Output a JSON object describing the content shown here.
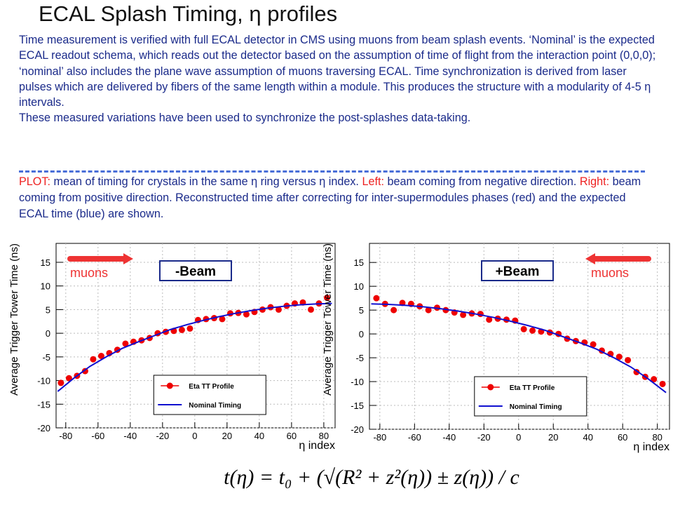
{
  "title": "ECAL Splash Timing, η profiles",
  "description": [
    "Time measurement is verified with full ECAL detector in CMS using muons from beam splash events. ‘Nominal’ is the expected ECAL readout schema, which reads out the detector based on the assumption of time of flight from the interaction point (0,0,0); ‘nominal’ also includes the plane wave assumption of muons traversing ECAL. Time synchronization is derived from laser pulses which are delivered by fibers of the same length within a module. This produces the structure with a modularity of 4-5 η intervals.",
    "These measured variations have been used to synchronize the post-splashes data-taking."
  ],
  "plot_note": [
    "PLOT:",
    "mean of timing for crystals in the same η ring versus η index.",
    "Left:",
    "beam coming from negative direction.",
    "Right:",
    "beam coming from positive direction. Reconstructed time after correcting for inter-supermodules phases (red) and the expected ECAL time (blue) are shown."
  ],
  "formula": "t(η) = t₀ + (√(R² + z²(η)) ± z(η)) / c",
  "chart_data": [
    {
      "type": "scatter",
      "beam_label": "-Beam",
      "arrow_label": "muons",
      "arrow_direction": "right",
      "xlabel": "η index",
      "ylabel": "Average Trigger Tower Time (ns)",
      "xlim": [
        -86,
        87
      ],
      "ylim": [
        -20,
        19
      ],
      "xticks": [
        -80,
        -60,
        -40,
        -20,
        0,
        20,
        40,
        60,
        80
      ],
      "yticks": [
        -20,
        -15,
        -10,
        -5,
        0,
        5,
        10,
        15
      ],
      "grid": true,
      "legend": "bottom",
      "series": [
        {
          "name": "Eta TT Profile",
          "color": "#ee0000",
          "mode": "markers",
          "x": [
            -83,
            -78,
            -73,
            -68,
            -63,
            -58,
            -53,
            -48,
            -43,
            -38,
            -33,
            -28,
            -23,
            -18,
            -13,
            -8,
            -3,
            2,
            7,
            12,
            17,
            22,
            27,
            32,
            37,
            42,
            47,
            52,
            57,
            62,
            67,
            72,
            77,
            82
          ],
          "values": [
            -10.5,
            -9.5,
            -9,
            -8,
            -5.5,
            -4.8,
            -4.2,
            -3.5,
            -2.2,
            -1.8,
            -1.5,
            -1,
            0,
            0.3,
            0.5,
            0.7,
            1,
            2.8,
            3,
            3.2,
            3,
            4.2,
            4.3,
            4,
            4.5,
            5,
            5.5,
            5,
            5.8,
            6.3,
            6.5,
            5,
            6.3,
            7.5
          ]
        },
        {
          "name": "Nominal Timing",
          "color": "#1010d0",
          "mode": "line",
          "x": [
            -85,
            -75,
            -65,
            -55,
            -45,
            -35,
            -25,
            -15,
            -5,
            5,
            15,
            25,
            35,
            45,
            55,
            65,
            75,
            85
          ],
          "values": [
            -12.3,
            -9.5,
            -7,
            -5,
            -3.2,
            -1.8,
            -0.5,
            0.8,
            1.8,
            2.7,
            3.5,
            4.2,
            4.8,
            5.3,
            5.7,
            6,
            6.2,
            6.3
          ]
        }
      ]
    },
    {
      "type": "scatter",
      "beam_label": "+Beam",
      "arrow_label": "muons",
      "arrow_direction": "left",
      "xlabel": "η index",
      "ylabel": "Average Trigger Tower Time (ns)",
      "xlim": [
        -86,
        87
      ],
      "ylim": [
        -20,
        19
      ],
      "xticks": [
        -80,
        -60,
        -40,
        -20,
        0,
        20,
        40,
        60,
        80
      ],
      "yticks": [
        -20,
        -15,
        -10,
        -5,
        0,
        5,
        10,
        15
      ],
      "grid": true,
      "legend": "bottom",
      "series": [
        {
          "name": "Eta TT Profile",
          "color": "#ee0000",
          "mode": "markers",
          "x": [
            -82,
            -77,
            -72,
            -67,
            -62,
            -57,
            -52,
            -47,
            -42,
            -37,
            -32,
            -27,
            -22,
            -17,
            -12,
            -7,
            -2,
            3,
            8,
            13,
            18,
            23,
            28,
            33,
            38,
            43,
            48,
            53,
            58,
            63,
            68,
            73,
            78,
            83
          ],
          "values": [
            7.5,
            6.3,
            5,
            6.5,
            6.3,
            5.8,
            5,
            5.5,
            5,
            4.5,
            4,
            4.3,
            4.2,
            3,
            3.2,
            3,
            2.8,
            1,
            0.7,
            0.5,
            0.3,
            0,
            -1,
            -1.5,
            -1.8,
            -2.2,
            -3.5,
            -4.2,
            -4.8,
            -5.5,
            -8,
            -9,
            -9.5,
            -10.5
          ]
        },
        {
          "name": "Nominal Timing",
          "color": "#1010d0",
          "mode": "line",
          "x": [
            -85,
            -75,
            -65,
            -55,
            -45,
            -35,
            -25,
            -15,
            -5,
            5,
            15,
            25,
            35,
            45,
            55,
            65,
            75,
            85
          ],
          "values": [
            6.3,
            6.2,
            6,
            5.7,
            5.3,
            4.8,
            4.2,
            3.5,
            2.7,
            1.8,
            0.8,
            -0.5,
            -1.8,
            -3.2,
            -5,
            -7,
            -9.5,
            -12.3
          ]
        }
      ]
    }
  ]
}
